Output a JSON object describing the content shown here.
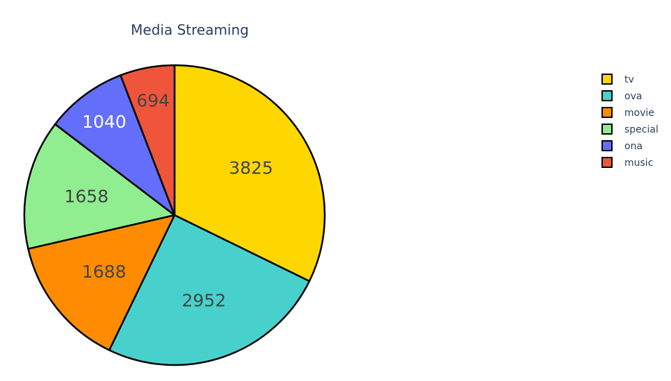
{
  "chart_data": {
    "type": "pie",
    "title": "Media Streaming",
    "slices": [
      {
        "label": "tv",
        "value": 3825,
        "color": "#FFD700",
        "text_color": "#444444"
      },
      {
        "label": "ova",
        "value": 2952,
        "color": "#48D1CC",
        "text_color": "#444444"
      },
      {
        "label": "movie",
        "value": 1688,
        "color": "#FF8C00",
        "text_color": "#444444"
      },
      {
        "label": "special",
        "value": 1658,
        "color": "#90EE90",
        "text_color": "#444444"
      },
      {
        "label": "ona",
        "value": 1040,
        "color": "#636EFA",
        "text_color": "#ffffff"
      },
      {
        "label": "music",
        "value": 694,
        "color": "#EF553B",
        "text_color": "#444444"
      }
    ],
    "legend": {
      "placement": "top-right",
      "order": [
        "tv",
        "ova",
        "movie",
        "special",
        "ona",
        "music"
      ]
    },
    "direction": "clockwise",
    "start": "top",
    "border_color": "#000000"
  }
}
